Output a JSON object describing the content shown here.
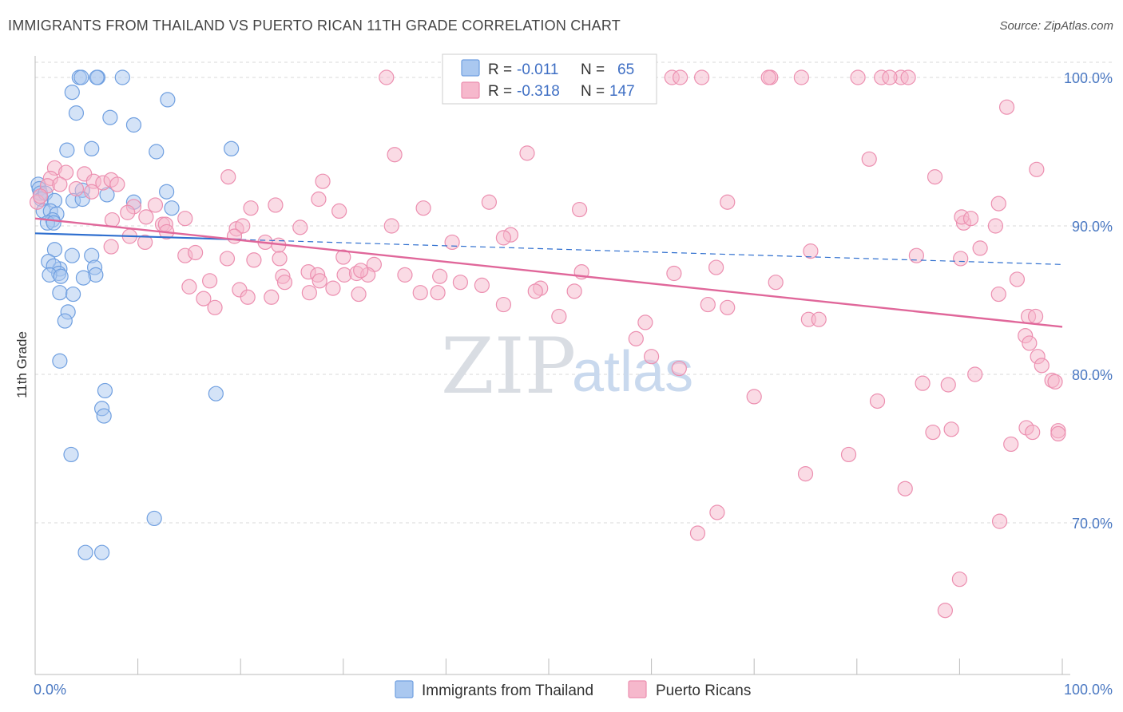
{
  "title": "IMMIGRANTS FROM THAILAND VS PUERTO RICAN 11TH GRADE CORRELATION CHART",
  "source": "Source: ZipAtlas.com",
  "watermark": {
    "zip": "ZIP",
    "atlas": "atlas"
  },
  "colors": {
    "blue_fill": "#aac8f0",
    "blue_stroke": "#6f9fe0",
    "blue_line": "#2f6fcf",
    "pink_fill": "#f6b8cc",
    "pink_stroke": "#ec8fb0",
    "pink_line": "#e0679a",
    "grid": "#d9d9d9",
    "tick_label": "#4a78c2"
  },
  "legend": {
    "rows": [
      {
        "r_label": "R =",
        "r_value": "-0.011",
        "n_label": "N =",
        "n_value": "65"
      },
      {
        "r_label": "R =",
        "r_value": "-0.318",
        "n_label": "N =",
        "n_value": "147"
      }
    ]
  },
  "chart_data": {
    "type": "scatter",
    "xlabel": "",
    "ylabel": "11th Grade",
    "xlim": [
      0,
      100
    ],
    "ylim": [
      60.5,
      101.5
    ],
    "x_tick_labels": [
      "0.0%",
      "100.0%"
    ],
    "y_ticks": [
      70,
      80,
      90,
      100
    ],
    "y_tick_labels": [
      "70.0%",
      "80.0%",
      "90.0%",
      "100.0%"
    ],
    "grid": true,
    "legend_position": "top-center",
    "series": [
      {
        "name": "Immigrants from Thailand",
        "color": "#aac8f0",
        "trend": {
          "x0": 0,
          "y0": 89.5,
          "x1": 100,
          "y1": 87.4,
          "solid_until": 20
        },
        "points": [
          [
            4.3,
            100
          ],
          [
            4.5,
            100
          ],
          [
            6.1,
            100
          ],
          [
            6.0,
            100
          ],
          [
            8.5,
            100
          ],
          [
            3.6,
            99
          ],
          [
            12.9,
            98.5
          ],
          [
            4.0,
            97.6
          ],
          [
            7.3,
            97.3
          ],
          [
            9.6,
            96.8
          ],
          [
            11.8,
            95.0
          ],
          [
            5.5,
            95.2
          ],
          [
            3.1,
            95.1
          ],
          [
            19.1,
            95.2
          ],
          [
            0.3,
            92.8
          ],
          [
            0.4,
            92.5
          ],
          [
            0.5,
            92.2
          ],
          [
            0.6,
            91.8
          ],
          [
            1.0,
            92.2
          ],
          [
            4.6,
            92.4
          ],
          [
            12.8,
            92.3
          ],
          [
            7.0,
            92.1
          ],
          [
            9.6,
            91.6
          ],
          [
            1.9,
            91.7
          ],
          [
            3.7,
            91.7
          ],
          [
            4.6,
            91.8
          ],
          [
            13.3,
            91.2
          ],
          [
            0.8,
            91.0
          ],
          [
            1.5,
            91.0
          ],
          [
            2.1,
            90.8
          ],
          [
            1.7,
            90.4
          ],
          [
            1.2,
            90.2
          ],
          [
            1.8,
            90.2
          ],
          [
            1.9,
            88.4
          ],
          [
            5.5,
            88.0
          ],
          [
            1.3,
            87.6
          ],
          [
            3.6,
            88.0
          ],
          [
            2.4,
            87.1
          ],
          [
            1.8,
            87.3
          ],
          [
            5.8,
            87.2
          ],
          [
            2.3,
            86.8
          ],
          [
            1.4,
            86.7
          ],
          [
            5.9,
            86.7
          ],
          [
            2.5,
            86.6
          ],
          [
            4.7,
            86.5
          ],
          [
            2.4,
            85.5
          ],
          [
            3.7,
            85.4
          ],
          [
            3.2,
            84.2
          ],
          [
            2.9,
            83.6
          ],
          [
            2.4,
            80.9
          ],
          [
            6.8,
            78.9
          ],
          [
            17.6,
            78.7
          ],
          [
            6.5,
            77.7
          ],
          [
            6.7,
            77.2
          ],
          [
            3.5,
            74.6
          ],
          [
            11.6,
            70.3
          ],
          [
            4.9,
            68.0
          ],
          [
            6.5,
            68.0
          ]
        ]
      },
      {
        "name": "Puerto Ricans",
        "color": "#f6b8cc",
        "trend": {
          "x0": 0,
          "y0": 90.5,
          "x1": 100,
          "y1": 83.2
        },
        "points": [
          [
            34.2,
            100
          ],
          [
            59.5,
            100
          ],
          [
            62.0,
            100
          ],
          [
            64.9,
            100
          ],
          [
            71.6,
            100
          ],
          [
            71.4,
            100
          ],
          [
            74.6,
            100
          ],
          [
            80.1,
            100
          ],
          [
            82.4,
            100
          ],
          [
            84.3,
            100
          ],
          [
            85.0,
            100
          ],
          [
            62.8,
            100
          ],
          [
            83.2,
            100
          ],
          [
            94.6,
            98
          ],
          [
            35.0,
            94.8
          ],
          [
            47.9,
            94.9
          ],
          [
            81.2,
            94.5
          ],
          [
            87.6,
            93.3
          ],
          [
            97.5,
            93.8
          ],
          [
            1.9,
            93.9
          ],
          [
            3.0,
            93.6
          ],
          [
            1.5,
            93.2
          ],
          [
            4.8,
            93.5
          ],
          [
            5.7,
            93.0
          ],
          [
            6.6,
            92.9
          ],
          [
            7.4,
            93.1
          ],
          [
            1.2,
            92.7
          ],
          [
            2.4,
            92.8
          ],
          [
            4.0,
            92.5
          ],
          [
            5.5,
            92.3
          ],
          [
            8.0,
            92.8
          ],
          [
            18.8,
            93.3
          ],
          [
            28.0,
            93.0
          ],
          [
            0.2,
            91.6
          ],
          [
            0.5,
            92.0
          ],
          [
            9.6,
            91.3
          ],
          [
            11.7,
            91.4
          ],
          [
            21.0,
            91.2
          ],
          [
            23.4,
            91.4
          ],
          [
            27.6,
            91.8
          ],
          [
            29.6,
            91.0
          ],
          [
            37.8,
            91.2
          ],
          [
            44.2,
            91.6
          ],
          [
            53.0,
            91.1
          ],
          [
            67.4,
            91.6
          ],
          [
            93.8,
            91.5
          ],
          [
            9.0,
            90.9
          ],
          [
            10.8,
            90.6
          ],
          [
            14.6,
            90.5
          ],
          [
            7.5,
            90.4
          ],
          [
            12.4,
            90.1
          ],
          [
            12.7,
            90.1
          ],
          [
            19.6,
            89.8
          ],
          [
            20.2,
            90.0
          ],
          [
            25.8,
            89.9
          ],
          [
            34.7,
            90.0
          ],
          [
            46.3,
            89.4
          ],
          [
            90.4,
            90.2
          ],
          [
            90.2,
            90.6
          ],
          [
            91.1,
            90.5
          ],
          [
            93.5,
            90.0
          ],
          [
            9.2,
            89.3
          ],
          [
            10.7,
            88.9
          ],
          [
            12.8,
            89.6
          ],
          [
            19.4,
            89.3
          ],
          [
            22.4,
            88.9
          ],
          [
            23.7,
            88.7
          ],
          [
            40.6,
            88.9
          ],
          [
            45.6,
            89.2
          ],
          [
            75.5,
            88.3
          ],
          [
            90.1,
            87.8
          ],
          [
            92.0,
            88.5
          ],
          [
            7.4,
            88.6
          ],
          [
            14.6,
            88.0
          ],
          [
            15.6,
            88.2
          ],
          [
            18.7,
            87.8
          ],
          [
            21.3,
            87.7
          ],
          [
            23.8,
            87.8
          ],
          [
            30.0,
            87.9
          ],
          [
            33.0,
            87.4
          ],
          [
            85.8,
            88.0
          ],
          [
            66.3,
            87.2
          ],
          [
            62.2,
            86.8
          ],
          [
            26.6,
            86.9
          ],
          [
            27.5,
            86.7
          ],
          [
            30.1,
            86.7
          ],
          [
            31.3,
            86.8
          ],
          [
            32.4,
            86.7
          ],
          [
            36.0,
            86.7
          ],
          [
            39.4,
            86.6
          ],
          [
            41.4,
            86.2
          ],
          [
            43.5,
            86.0
          ],
          [
            49.2,
            85.8
          ],
          [
            53.2,
            86.9
          ],
          [
            15.0,
            85.9
          ],
          [
            17.0,
            86.3
          ],
          [
            19.9,
            85.7
          ],
          [
            20.7,
            85.2
          ],
          [
            23.0,
            85.2
          ],
          [
            24.1,
            86.6
          ],
          [
            24.3,
            86.2
          ],
          [
            26.7,
            85.5
          ],
          [
            27.7,
            86.3
          ],
          [
            29.0,
            85.8
          ],
          [
            31.5,
            85.4
          ],
          [
            31.7,
            87.0
          ],
          [
            37.5,
            85.5
          ],
          [
            39.2,
            85.5
          ],
          [
            45.6,
            84.7
          ],
          [
            48.7,
            85.6
          ],
          [
            52.5,
            85.6
          ],
          [
            72.1,
            86.2
          ],
          [
            93.8,
            85.4
          ],
          [
            95.6,
            86.4
          ],
          [
            67.4,
            84.5
          ],
          [
            75.3,
            83.7
          ],
          [
            65.5,
            84.7
          ],
          [
            16.4,
            85.1
          ],
          [
            17.5,
            84.5
          ],
          [
            51.0,
            83.9
          ],
          [
            59.4,
            83.5
          ],
          [
            76.3,
            83.7
          ],
          [
            96.7,
            83.9
          ],
          [
            97.4,
            83.9
          ],
          [
            96.4,
            82.6
          ],
          [
            96.8,
            82.1
          ],
          [
            97.6,
            81.2
          ],
          [
            98.0,
            80.6
          ],
          [
            99.0,
            79.6
          ],
          [
            99.3,
            79.5
          ],
          [
            58.5,
            82.4
          ],
          [
            60.0,
            81.2
          ],
          [
            62.7,
            80.4
          ],
          [
            91.5,
            80.0
          ],
          [
            86.4,
            79.4
          ],
          [
            88.9,
            79.3
          ],
          [
            70.0,
            78.5
          ],
          [
            82.0,
            78.2
          ],
          [
            96.5,
            76.4
          ],
          [
            97.1,
            76.1
          ],
          [
            99.6,
            76.2
          ],
          [
            87.4,
            76.1
          ],
          [
            89.2,
            76.3
          ],
          [
            95.0,
            75.3
          ],
          [
            79.2,
            74.6
          ],
          [
            75.0,
            73.3
          ],
          [
            99.6,
            76.0
          ],
          [
            93.9,
            70.1
          ],
          [
            84.7,
            72.3
          ],
          [
            66.4,
            70.7
          ],
          [
            64.5,
            69.3
          ],
          [
            90.0,
            66.2
          ],
          [
            88.6,
            64.1
          ]
        ]
      }
    ]
  },
  "bottom_legend": {
    "items": [
      {
        "label": "Immigrants from Thailand"
      },
      {
        "label": "Puerto Ricans"
      }
    ]
  }
}
